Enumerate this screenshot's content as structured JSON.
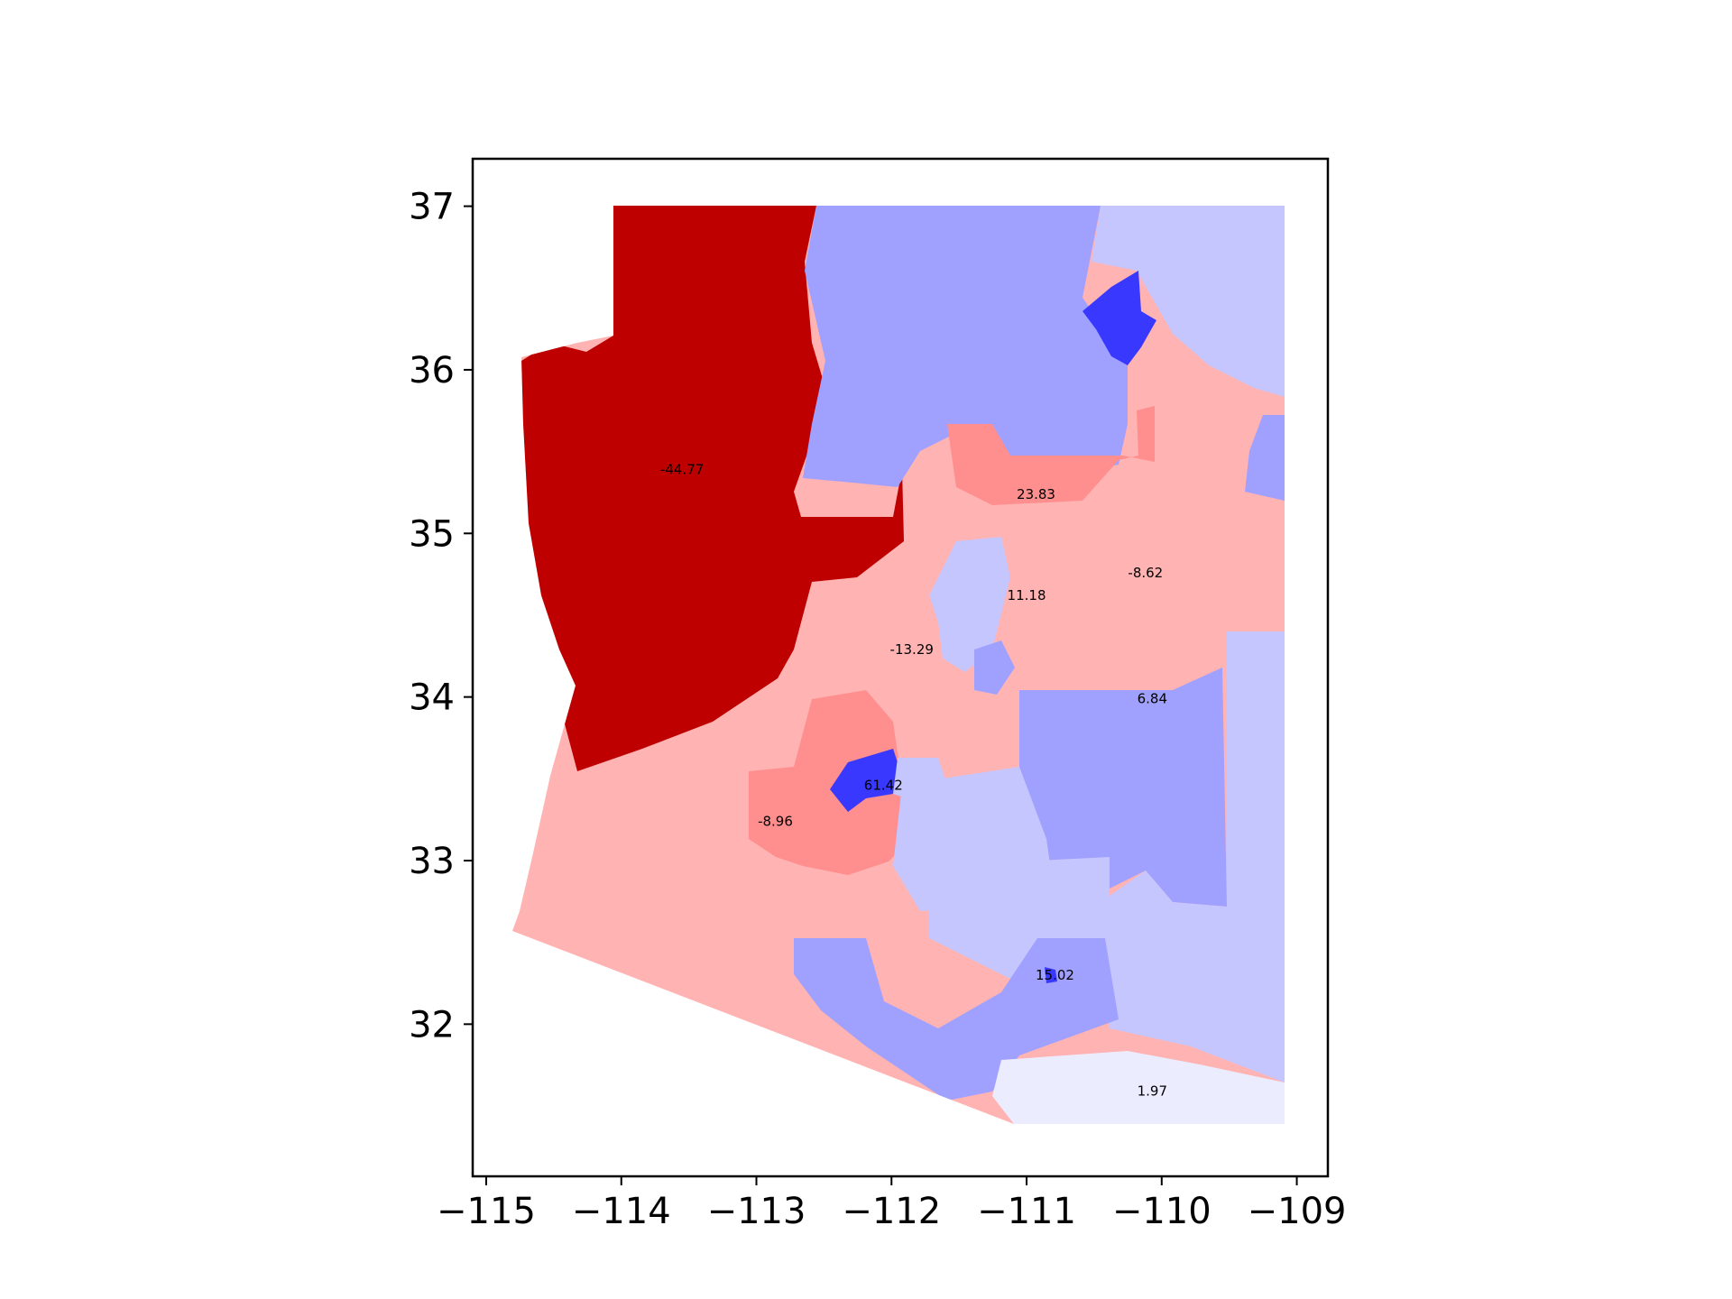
{
  "chart_data": {
    "type": "choropleth",
    "xlim": [
      -115.1,
      -108.77
    ],
    "ylim": [
      31.07,
      37.29
    ],
    "x_ticks": [
      {
        "value": -115,
        "label": "−115"
      },
      {
        "value": -114,
        "label": "−114"
      },
      {
        "value": -113,
        "label": "−113"
      },
      {
        "value": -112,
        "label": "−112"
      },
      {
        "value": -111,
        "label": "−111"
      },
      {
        "value": -110,
        "label": "−110"
      },
      {
        "value": -109,
        "label": "−109"
      }
    ],
    "y_ticks": [
      {
        "value": 32,
        "label": "32"
      },
      {
        "value": 33,
        "label": "33"
      },
      {
        "value": 34,
        "label": "34"
      },
      {
        "value": 35,
        "label": "35"
      },
      {
        "value": 36,
        "label": "36"
      },
      {
        "value": 37,
        "label": "37"
      }
    ],
    "grid": false,
    "colormap": "bwr_r",
    "districts": [
      {
        "label": "-44.77",
        "value": -44.77,
        "lon": -113.55,
        "lat": 35.39,
        "color": "#bf0000"
      },
      {
        "label": "23.83",
        "value": 23.83,
        "lon": -110.93,
        "lat": 35.24,
        "color": "#ff8e8e"
      },
      {
        "label": "-8.62",
        "value": -8.62,
        "lon": -110.12,
        "lat": 34.76,
        "color": "#ffb3b3"
      },
      {
        "label": "11.18",
        "value": 11.18,
        "lon": -111.0,
        "lat": 34.62,
        "color": "#c6c6ff"
      },
      {
        "label": "-13.29",
        "value": -13.29,
        "lon": -111.85,
        "lat": 34.29,
        "color": "#ffb3b3"
      },
      {
        "label": "6.84",
        "value": 6.84,
        "lon": -110.07,
        "lat": 33.99,
        "color": "#a0a0ff"
      },
      {
        "label": "61.42",
        "value": 61.42,
        "lon": -112.06,
        "lat": 33.46,
        "color": "#3838ff"
      },
      {
        "label": "-8.96",
        "value": -8.96,
        "lon": -112.86,
        "lat": 33.24,
        "color": "#ffb3b3"
      },
      {
        "label": "15.02",
        "value": 15.02,
        "lon": -110.79,
        "lat": 32.3,
        "color": "#a0a0ff"
      },
      {
        "label": "1.97",
        "value": 1.97,
        "lon": -110.07,
        "lat": 31.59,
        "color": "#ececff"
      }
    ]
  }
}
